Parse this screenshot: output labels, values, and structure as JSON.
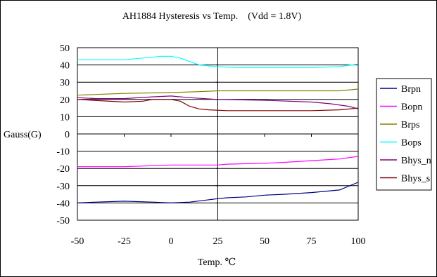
{
  "chart_data": {
    "type": "line",
    "title": "AH1884 Hysteresis vs Temp.    (Vdd = 1.8V)",
    "xlabel": "Temp. ℃",
    "ylabel": "Gauss(G)",
    "xlim": [
      -50,
      100
    ],
    "ylim": [
      -50,
      50
    ],
    "x_ticks": [
      "-50",
      "-25",
      "0",
      "25",
      "50",
      "75",
      "100"
    ],
    "x_tick_values": [
      -50,
      -25,
      0,
      25,
      50,
      75,
      100
    ],
    "y_ticks": [
      "50",
      "40",
      "30",
      "20",
      "10",
      "0",
      "-10",
      "-20",
      "-30",
      "-40",
      "-50"
    ],
    "y_tick_values": [
      50,
      40,
      30,
      20,
      10,
      0,
      -10,
      -20,
      -30,
      -40,
      -50
    ],
    "grid": "horizontal",
    "legend_position": "right",
    "series": [
      {
        "name": "Brpn",
        "color": "#000080",
        "points": [
          [
            -50,
            -40
          ],
          [
            -40,
            -39.5
          ],
          [
            -25,
            -39
          ],
          [
            -10,
            -39.5
          ],
          [
            0,
            -40
          ],
          [
            10,
            -39.5
          ],
          [
            25,
            -37.5
          ],
          [
            30,
            -37
          ],
          [
            40,
            -36.5
          ],
          [
            50,
            -35.5
          ],
          [
            60,
            -35
          ],
          [
            75,
            -34
          ],
          [
            90,
            -32.5
          ],
          [
            100,
            -28
          ]
        ]
      },
      {
        "name": "Bopn",
        "color": "#ff00ff",
        "points": [
          [
            -50,
            -19
          ],
          [
            -25,
            -19
          ],
          [
            0,
            -18
          ],
          [
            25,
            -18
          ],
          [
            30,
            -17.5
          ],
          [
            50,
            -17
          ],
          [
            60,
            -16.5
          ],
          [
            75,
            -15.5
          ],
          [
            90,
            -14.5
          ],
          [
            100,
            -13
          ]
        ]
      },
      {
        "name": "Brps",
        "color": "#808000",
        "points": [
          [
            -50,
            22.5
          ],
          [
            -25,
            23.5
          ],
          [
            0,
            24
          ],
          [
            15,
            24.5
          ],
          [
            25,
            25
          ],
          [
            50,
            25
          ],
          [
            75,
            25
          ],
          [
            90,
            25
          ],
          [
            100,
            26
          ]
        ]
      },
      {
        "name": "Bops",
        "color": "#00ffff",
        "points": [
          [
            -50,
            43
          ],
          [
            -25,
            43
          ],
          [
            -15,
            44
          ],
          [
            -5,
            45
          ],
          [
            0,
            45
          ],
          [
            5,
            44
          ],
          [
            15,
            40
          ],
          [
            25,
            39
          ],
          [
            35,
            38.5
          ],
          [
            50,
            38.5
          ],
          [
            75,
            38.5
          ],
          [
            90,
            39
          ],
          [
            100,
            40.5
          ]
        ]
      },
      {
        "name": "Bhys_n",
        "color": "#800080",
        "points": [
          [
            -50,
            21
          ],
          [
            -40,
            20.5
          ],
          [
            -25,
            20.5
          ],
          [
            -10,
            21.5
          ],
          [
            0,
            22
          ],
          [
            10,
            21
          ],
          [
            25,
            20
          ],
          [
            50,
            19.5
          ],
          [
            75,
            18.5
          ],
          [
            85,
            17.5
          ],
          [
            95,
            16
          ],
          [
            100,
            14.5
          ]
        ]
      },
      {
        "name": "Bhys_s",
        "color": "#800000",
        "points": [
          [
            -50,
            20
          ],
          [
            -25,
            18.5
          ],
          [
            -15,
            19
          ],
          [
            -10,
            20
          ],
          [
            0,
            20
          ],
          [
            5,
            19
          ],
          [
            10,
            16
          ],
          [
            15,
            14.5
          ],
          [
            20,
            14
          ],
          [
            30,
            13.5
          ],
          [
            50,
            13.5
          ],
          [
            75,
            13.5
          ],
          [
            90,
            14
          ],
          [
            100,
            15
          ]
        ]
      }
    ]
  }
}
